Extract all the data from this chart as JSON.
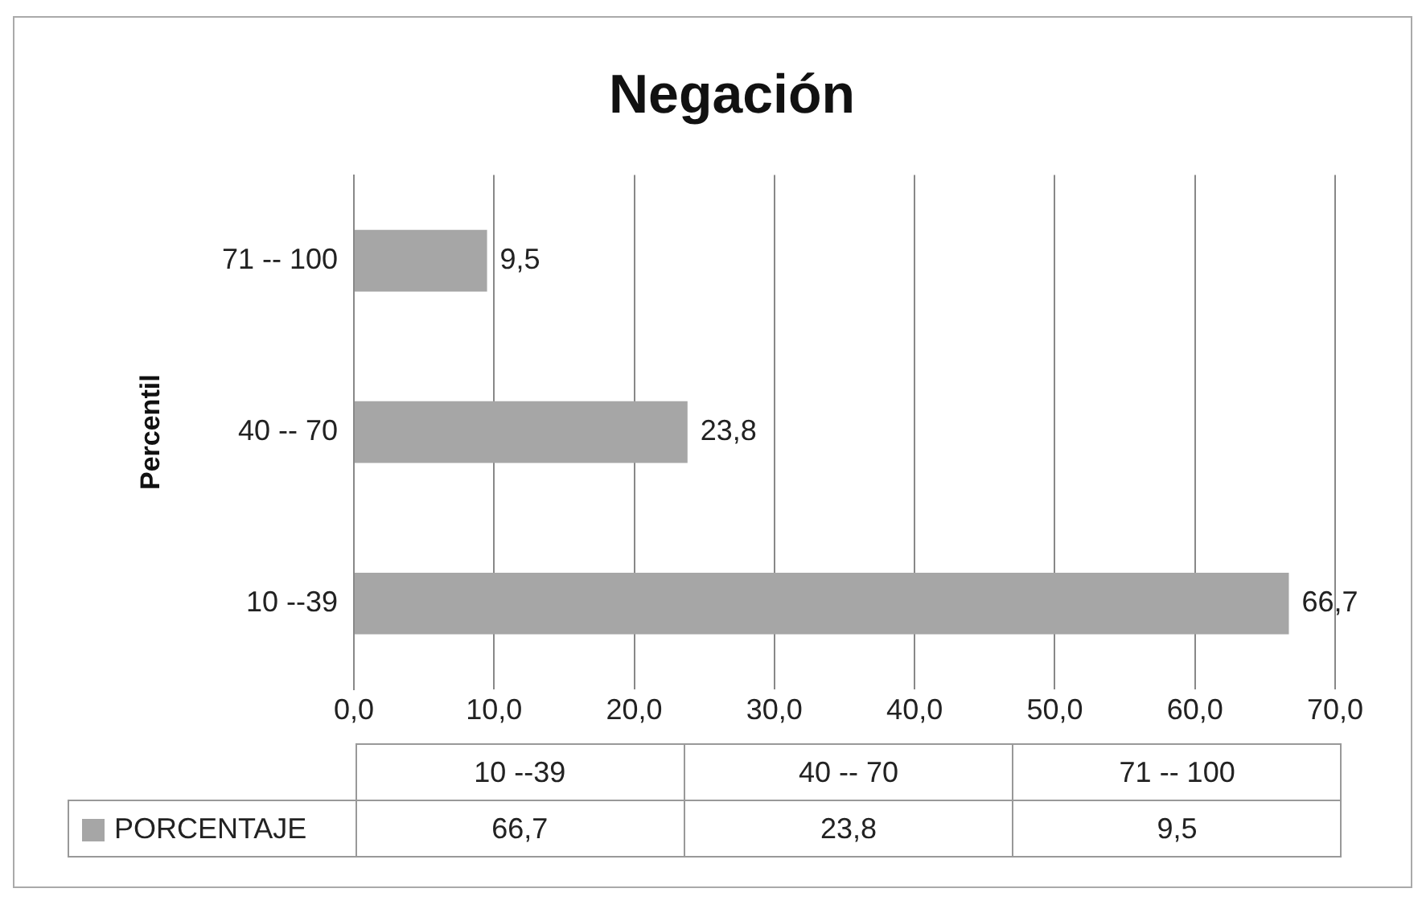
{
  "chart_data": {
    "type": "bar",
    "orientation": "horizontal",
    "title": "Negación",
    "ylabel": "Percentil",
    "categories": [
      "71 -- 100",
      "40 -- 70",
      "10 --39"
    ],
    "series": [
      {
        "name": "PORCENTAJE",
        "color": "#a6a6a6",
        "values": [
          9.5,
          23.8,
          66.7
        ],
        "value_labels": [
          "9,5",
          "23,8",
          "66,7"
        ]
      }
    ],
    "xlim": [
      0,
      70
    ],
    "xticks": [
      {
        "value": 0,
        "label": "0,0"
      },
      {
        "value": 10,
        "label": "10,0"
      },
      {
        "value": 20,
        "label": "20,0"
      },
      {
        "value": 30,
        "label": "30,0"
      },
      {
        "value": 40,
        "label": "40,0"
      },
      {
        "value": 50,
        "label": "50,0"
      },
      {
        "value": 60,
        "label": "60,0"
      },
      {
        "value": 70,
        "label": "70,0"
      }
    ],
    "grid": "x",
    "legend": "bottom"
  }
}
